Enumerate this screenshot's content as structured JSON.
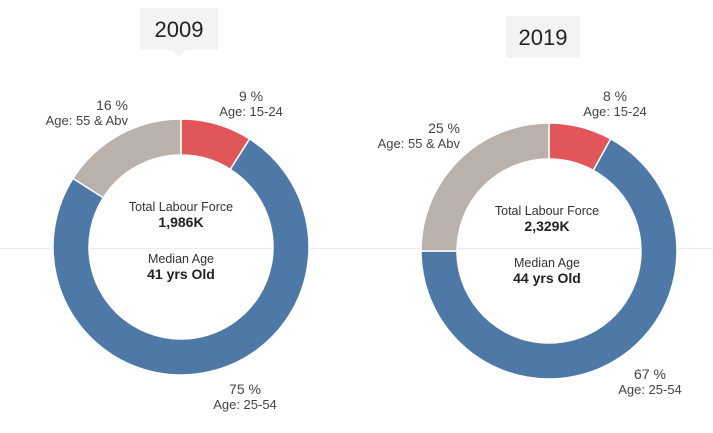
{
  "colors": {
    "seg_15_24": "#e15759",
    "seg_25_54": "#4e79a7",
    "seg_55_abv": "#bab0ac"
  },
  "chart_data": [
    {
      "type": "pie",
      "title": "2009",
      "categories": [
        "Age: 15-24",
        "Age: 25-54",
        "Age: 55 & Abv"
      ],
      "values": [
        9,
        75,
        16
      ],
      "value_labels": [
        "9 %",
        "75 %",
        "16 %"
      ],
      "center": {
        "label1": "Total Labour Force",
        "value1": "1,986K",
        "label2": "Median Age",
        "value2": "41 yrs Old"
      }
    },
    {
      "type": "pie",
      "title": "2019",
      "categories": [
        "Age: 15-24",
        "Age: 25-54",
        "Age: 55 & Abv"
      ],
      "values": [
        8,
        67,
        25
      ],
      "value_labels": [
        "8 %",
        "67 %",
        "25 %"
      ],
      "center": {
        "label1": "Total Labour Force",
        "value1": "2,329K",
        "label2": "Median Age",
        "value2": "44 yrs Old"
      }
    }
  ]
}
